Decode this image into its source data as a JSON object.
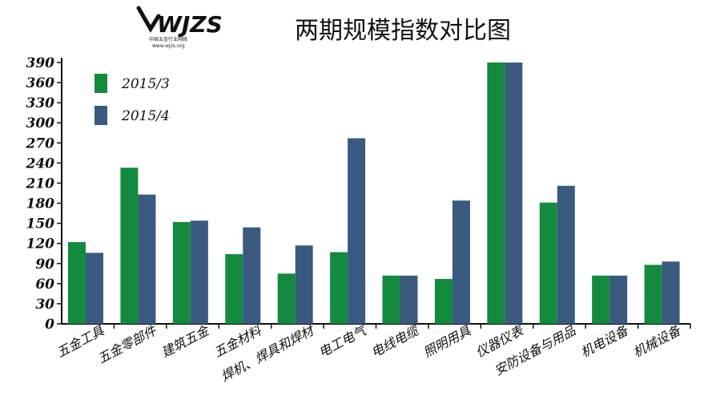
{
  "logo": {
    "text": "WJZS",
    "subtitle": "中国五金行业网络",
    "url": "www.wjzs.org"
  },
  "chart_data": {
    "type": "bar",
    "title": "两期规模指数对比图",
    "xlabel": "",
    "ylabel": "",
    "ylim": [
      0,
      390
    ],
    "yticks": [
      0,
      30,
      60,
      90,
      120,
      150,
      180,
      210,
      240,
      270,
      300,
      330,
      360,
      390
    ],
    "grid": false,
    "legend_position": "top-left",
    "categories": [
      "五金工具",
      "五金零部件",
      "建筑五金",
      "五金材料",
      "焊机、焊具和焊材",
      "电工电气",
      "电线电缆",
      "照明用具",
      "仪器仪表",
      "安防设备与用品",
      "机电设备",
      "机械设备"
    ],
    "series": [
      {
        "name": "2015/3",
        "color": "#138a3e",
        "values": [
          122,
          233,
          152,
          104,
          75,
          107,
          72,
          67,
          390,
          181,
          72,
          88
        ]
      },
      {
        "name": "2015/4",
        "color": "#3a5a80",
        "values": [
          106,
          193,
          154,
          144,
          117,
          277,
          72,
          184,
          390,
          206,
          72,
          93
        ]
      }
    ]
  }
}
